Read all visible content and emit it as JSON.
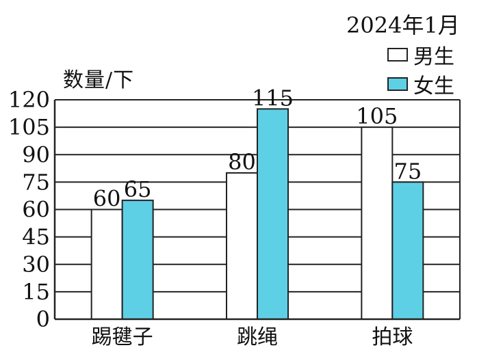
{
  "chart_data": {
    "type": "bar",
    "date_note": "2024年1月",
    "ylabel": "数量/下",
    "xlabel": "",
    "categories": [
      "踢毽子",
      "跳绳",
      "拍球"
    ],
    "series": [
      {
        "name": "男生",
        "values": [
          60,
          80,
          105
        ],
        "color": "#ffffff"
      },
      {
        "name": "女生",
        "values": [
          65,
          115,
          75
        ],
        "color": "#5ed0e6"
      }
    ],
    "ylim": [
      0,
      120
    ],
    "yticks": [
      0,
      15,
      30,
      45,
      60,
      75,
      90,
      105,
      120
    ],
    "grid": true,
    "legend_position": "top-right",
    "data_labels": true
  }
}
